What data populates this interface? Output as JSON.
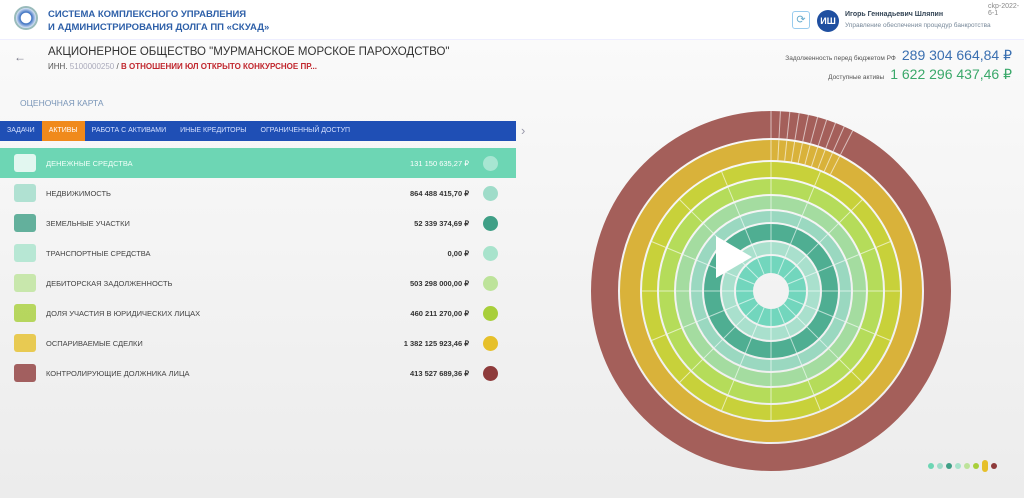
{
  "header": {
    "system_line1": "СИСТЕМА КОМПЛЕКСНОГО УПРАВЛЕНИЯ",
    "system_line2": "И АДМИНИСТРИРОВАНИЯ ДОЛГА ПП «СКУАД»",
    "user_initials": "ИШ",
    "user_name": "Игорь Геннадьевич Шляпин",
    "user_role": "Управление обеспечения процедур банкротства",
    "version": "сkp-2022-6-1"
  },
  "company": {
    "name": "АКЦИОНЕРНОЕ ОБЩЕСТВО \"МУРМАНСКОЕ МОРСКОЕ ПАРОХОДСТВО\"",
    "inn_label": "ИНН.",
    "inn_value": "5100000250",
    "separator": "/",
    "status": "В ОТНОШЕНИИ ЮЛ ОТКРЫТО КОНКУРСНОЕ ПР..."
  },
  "totals": {
    "debt_label": "Задолженность перед бюджетом РФ",
    "debt_value": "289 304 664,84 ₽",
    "assets_label": "Доступные активы",
    "assets_value": "1 622 296 437,46 ₽"
  },
  "section_label": "ОЦЕНОЧНАЯ КАРТА",
  "tabs": [
    {
      "label": "ЗАДАЧИ"
    },
    {
      "label": "АКТИВЫ",
      "active": true
    },
    {
      "label": "РАБОТА С АКТИВАМИ"
    },
    {
      "label": "ИНЫЕ КРЕДИТОРЫ"
    },
    {
      "label": "ОГРАНИЧЕННЫЙ ДОСТУП"
    }
  ],
  "assets": [
    {
      "label": "ДЕНЕЖНЫЕ СРЕДСТВА",
      "value": "131 150 635,27 ₽",
      "color": "#6dd6b4",
      "icon": "money-bag-icon",
      "active": true
    },
    {
      "label": "НЕДВИЖИМОСТЬ",
      "value": "864 488 415,70 ₽",
      "color": "#9fdcc9",
      "icon": "building-icon"
    },
    {
      "label": "ЗЕМЕЛЬНЫЕ УЧАСТКИ",
      "value": "52 339 374,69 ₽",
      "color": "#3f9f86",
      "icon": "land-icon"
    },
    {
      "label": "ТРАНСПОРТНЫЕ СРЕДСТВА",
      "value": "0,00 ₽",
      "color": "#a8e3cc",
      "icon": "car-icon"
    },
    {
      "label": "ДЕБИТОРСКАЯ ЗАДОЛЖЕННОСТЬ",
      "value": "503 298 000,00 ₽",
      "color": "#bde39a",
      "icon": "money-icon"
    },
    {
      "label": "ДОЛЯ УЧАСТИЯ В ЮРИДИЧЕСКИХ ЛИЦАХ",
      "value": "460 211 270,00 ₽",
      "color": "#a8cf3a",
      "icon": "pie-share-icon"
    },
    {
      "label": "ОСПАРИВАЕМЫЕ СДЕЛКИ",
      "value": "1 382 125 923,46 ₽",
      "color": "#e6c02a",
      "icon": "gavel-icon"
    },
    {
      "label": "КОНТРОЛИРУЮЩИЕ ДОЛЖНИКА ЛИЦА",
      "value": "413 527 689,36 ₽",
      "color": "#8e3b3b",
      "icon": "person-icon"
    }
  ],
  "ring_colors": [
    "#a45f5a",
    "#d9b23a",
    "#c8d13a",
    "#b5dc5a",
    "#a4dca0",
    "#9ad8c0",
    "#4fae92",
    "#a9e0cd",
    "#72d6bd"
  ],
  "pager_colors": [
    "#6dd6b4",
    "#9fdcc9",
    "#3f9f86",
    "#a8e3cc",
    "#bde39a",
    "#a8cf3a",
    "#e6c02a",
    "#8e3b3b"
  ]
}
